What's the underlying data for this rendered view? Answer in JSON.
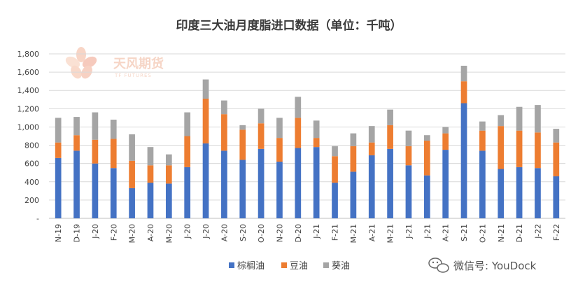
{
  "chart_data": {
    "type": "bar",
    "stacked": true,
    "title": "印度三大油月度脂进口数据（单位：千吨）",
    "ylim": [
      0,
      1800
    ],
    "yticks": [
      "-",
      "200",
      "400",
      "600",
      "800",
      "1,000",
      "1,200",
      "1,400",
      "1,600",
      "1,800"
    ],
    "grid": true,
    "legend_position": "bottom",
    "categories": [
      "N-19",
      "D-19",
      "J-20",
      "F-20",
      "M-20",
      "A-20",
      "M-20",
      "J-20",
      "J-20",
      "A-20",
      "S-20",
      "O-20",
      "N-20",
      "D-20",
      "J-21",
      "F-21",
      "M-21",
      "A-21",
      "M-21",
      "J-21",
      "J-21",
      "A-21",
      "S-21",
      "O-21",
      "N-21",
      "D-21",
      "J-22",
      "F-22"
    ],
    "series": [
      {
        "name": "棕榈油",
        "color": "#4472C4",
        "values": [
          660,
          740,
          600,
          550,
          330,
          390,
          380,
          560,
          820,
          740,
          640,
          760,
          620,
          770,
          780,
          390,
          510,
          690,
          760,
          580,
          470,
          750,
          1260,
          740,
          540,
          560,
          550,
          460
        ]
      },
      {
        "name": "豆油",
        "color": "#ED7D31",
        "values": [
          170,
          170,
          260,
          320,
          300,
          190,
          200,
          340,
          490,
          400,
          330,
          280,
          260,
          330,
          100,
          290,
          280,
          140,
          260,
          210,
          380,
          180,
          240,
          220,
          470,
          400,
          390,
          370
        ]
      },
      {
        "name": "葵油",
        "color": "#A5A5A5",
        "values": [
          270,
          200,
          300,
          210,
          290,
          200,
          120,
          260,
          210,
          150,
          50,
          160,
          220,
          230,
          190,
          110,
          140,
          180,
          170,
          170,
          60,
          70,
          170,
          100,
          120,
          260,
          300,
          150
        ]
      }
    ]
  },
  "watermark": {
    "logo_text": "天风期货",
    "logo_sub": "TF FUTURES",
    "wechat_label": "微信号: YouDock"
  }
}
